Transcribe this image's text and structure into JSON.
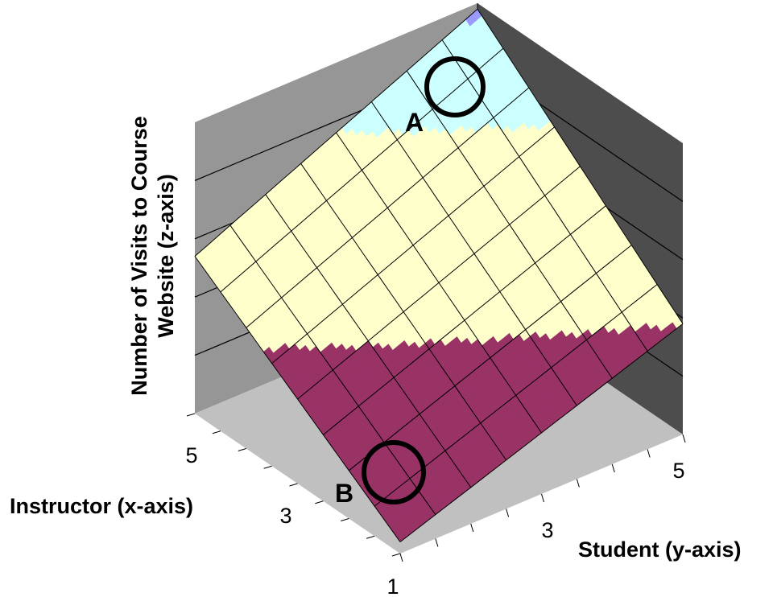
{
  "chart_data": {
    "type": "surface",
    "zlabel_lines": [
      "Number of Visits to Course",
      "Website (z-axis)"
    ],
    "xlabel": "Instructor (x-axis)",
    "ylabel": "Student (y-axis)",
    "x_ticks": [
      "1",
      "3",
      "5"
    ],
    "y_ticks": [
      "3",
      "5"
    ],
    "x_range": [
      1,
      5
    ],
    "y_range": [
      1,
      5
    ],
    "z_range": [
      0,
      5
    ],
    "grid_divisions": 8,
    "surface": {
      "corners": [
        {
          "x": 1,
          "y": 1,
          "z": 0.2
        },
        {
          "x": 5,
          "y": 1,
          "z": 2.7
        },
        {
          "x": 1,
          "y": 5,
          "z": 1.9
        },
        {
          "x": 5,
          "y": 5,
          "z": 4.9
        }
      ]
    },
    "bands": [
      {
        "range": [
          0,
          1.9
        ],
        "color": "#993366"
      },
      {
        "range": [
          1.9,
          3.8
        ],
        "color": "#ffffcc"
      },
      {
        "range": [
          3.8,
          4.8
        ],
        "color": "#ccffff"
      },
      {
        "range": [
          4.8,
          5.0
        ],
        "color": "#9999ff"
      }
    ],
    "walls": {
      "back": "#969696",
      "side": "#4d4d4d",
      "floor": "#c0c0c0"
    },
    "annotations": [
      {
        "label": "A",
        "x": 5,
        "y": 5
      },
      {
        "label": "B",
        "x": 1,
        "y": 1
      }
    ]
  }
}
